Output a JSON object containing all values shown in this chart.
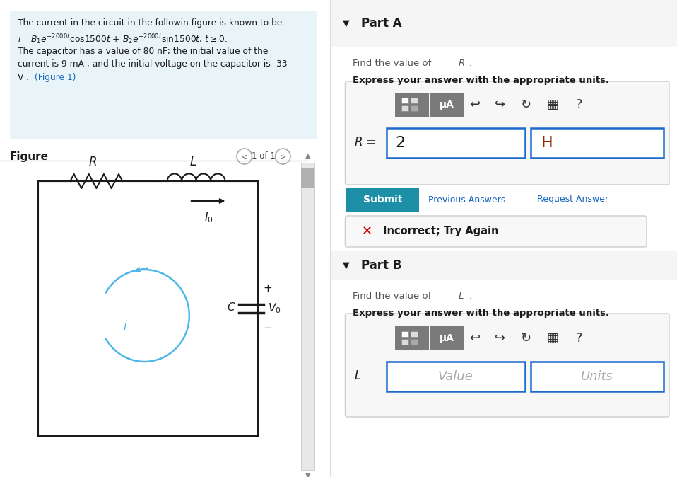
{
  "bg_color": "#ffffff",
  "left_panel_bg": "#e8f4f8",
  "problem_line1": "The current in the circuit in the followin figure is known to be",
  "problem_line3": "The capacitor has a value of 80 nF; the initial value of the",
  "problem_line4": "current is 9 mA ; and the initial voltage on the capacitor is -33",
  "problem_line5a": "V .",
  "problem_line5b": "(Figure 1)",
  "figure_label": "Figure",
  "nav_text": "1 of 1",
  "part_a_header": "Part A",
  "part_a_express": "Express your answer with the appropriate units.",
  "part_a_value": "2",
  "part_a_units": "H",
  "submit_text": "Submit",
  "prev_answers_text": "Previous Answers",
  "request_answer_text": "Request Answer",
  "incorrect_text": "Incorrect; Try Again",
  "part_b_header": "Part B",
  "part_b_express": "Express your answer with the appropriate units.",
  "part_b_value": "Value",
  "part_b_units": "Units",
  "submit_bg": "#1d8fa6",
  "submit_text_color": "#ffffff",
  "link_color": "#1565c0",
  "incorrect_x_color": "#cc0000",
  "input_border_color": "#1a6bcc",
  "toolbar_bg": "#7a7a7a",
  "divider_color": "#cccccc",
  "part_header_bg": "#f5f5f5",
  "input_box_bg": "#f7f7f7",
  "circuit_color": "#1a1a1a",
  "cyan_color": "#4db8e8",
  "resistor_color": "#1a1a1a",
  "inductor_color": "#1a1a1a",
  "h_units_color": "#8B3000"
}
